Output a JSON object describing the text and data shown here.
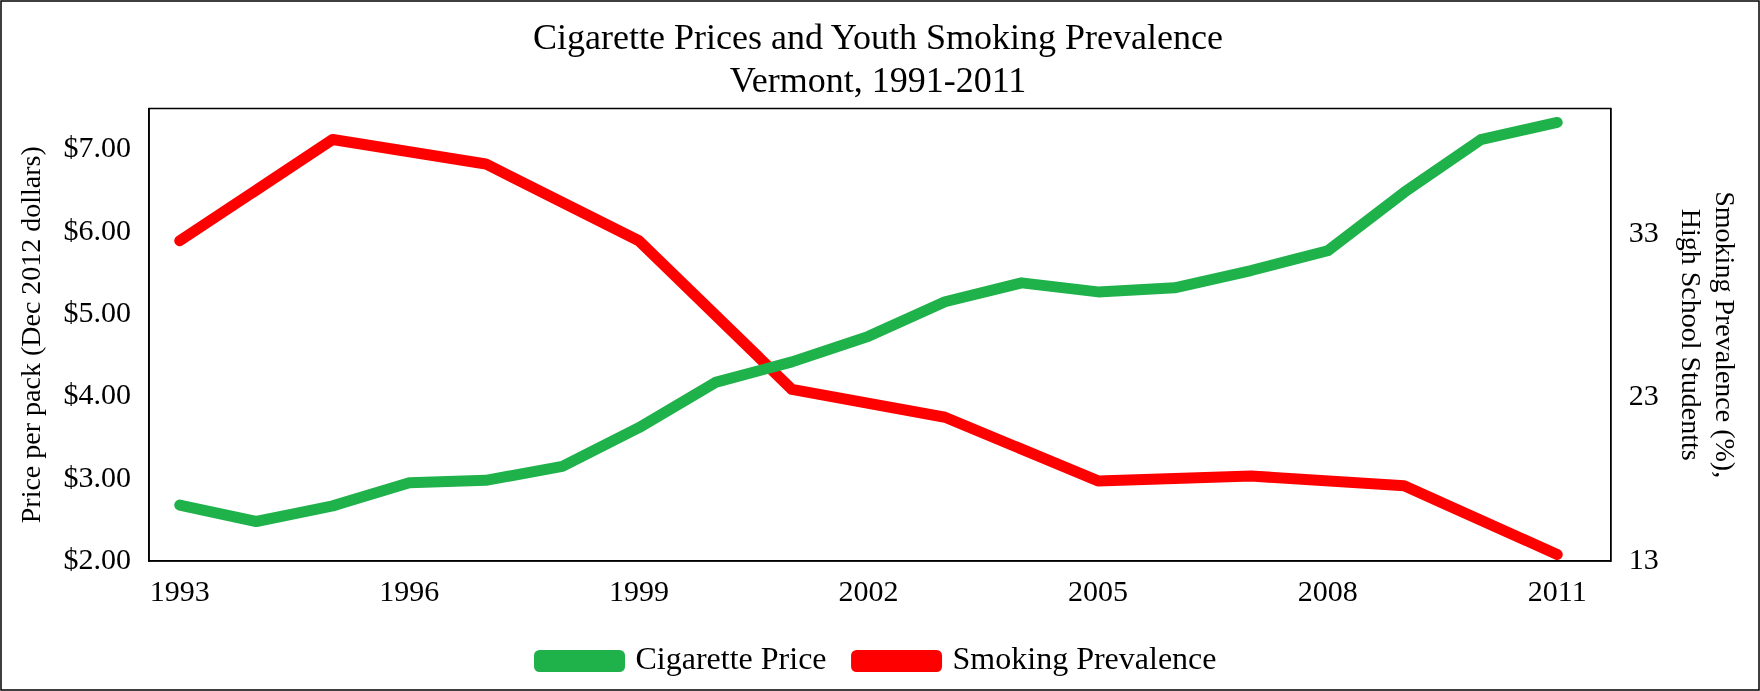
{
  "chart_data": {
    "type": "line",
    "title": "Cigarette Prices and Youth Smoking Prevalence",
    "subtitle": "Vermont, 1991-2011",
    "ylabel": "Price per pack (Dec 2012 dollars)",
    "y2label": "Smoking Prevalence (%), High School Studentts",
    "xlim": [
      1992.6,
      2011.7
    ],
    "xticks": [
      1993,
      1996,
      1999,
      2002,
      2005,
      2008,
      2011
    ],
    "ylim": [
      2,
      7.5
    ],
    "yticks": [
      {
        "value": 2,
        "label": "$2.00"
      },
      {
        "value": 3,
        "label": "$3.00"
      },
      {
        "value": 4,
        "label": "$4.00"
      },
      {
        "value": 5,
        "label": "$5.00"
      },
      {
        "value": 6,
        "label": "$6.00"
      },
      {
        "value": 7,
        "label": "$7.00"
      }
    ],
    "y2lim": [
      13,
      40.7
    ],
    "y2ticks": [
      13,
      23,
      33
    ],
    "grid": false,
    "legend": "bottom",
    "marker": "none",
    "line_style": "solid",
    "series": [
      {
        "name": "Cigarette Price",
        "color": "#1fb24b",
        "x": [
          1993,
          1994,
          1995,
          1996,
          1997,
          1998,
          1999,
          2000,
          2001,
          2002,
          2003,
          2004,
          2005,
          2006,
          2007,
          2008,
          2009,
          2010,
          2011
        ],
        "values": [
          2.68,
          2.48,
          2.67,
          2.95,
          2.98,
          3.15,
          3.62,
          4.17,
          4.42,
          4.73,
          5.15,
          5.38,
          5.27,
          5.32,
          5.53,
          5.77,
          6.48,
          7.12,
          7.33
        ]
      },
      {
        "name": "Smoking Prevalence",
        "color": "#ff0000",
        "axis": "y2",
        "x": [
          1993,
          1995,
          1997,
          1999,
          2001,
          2003,
          2005,
          2007,
          2009,
          2011
        ],
        "values": [
          32.6,
          38.8,
          37.3,
          32.6,
          23.5,
          21.8,
          17.9,
          18.2,
          17.6,
          13.4
        ]
      }
    ]
  }
}
